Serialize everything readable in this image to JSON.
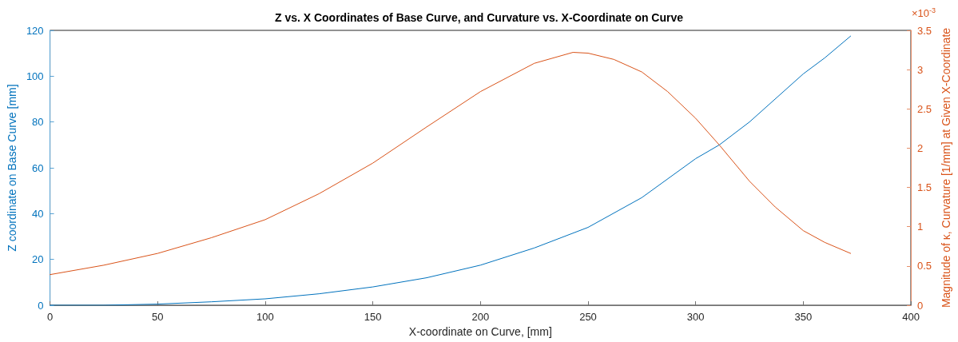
{
  "chart_data": {
    "type": "line",
    "title": "Z vs. X Coordinates of Base Curve, and Curvature vs. X-Coordinate on Curve",
    "xlabel": "X-coordinate on Curve, [mm]",
    "ylabel": "Z coordinate on Base Curve [mm]",
    "y2label": "Magnitude of κ, Curvature [1/mm] at Given X-Coordinate",
    "annotations": [
      "×10$^{-3}$"
    ],
    "series": [
      {
        "color": "#0072bd",
        "x": [
          0,
          25,
          50,
          75,
          100,
          125,
          150,
          175,
          200,
          225,
          250,
          275,
          300,
          311,
          325,
          350,
          360,
          372
        ],
        "values": [
          0,
          0,
          0.5,
          1.5,
          2.8,
          5,
          8,
          12,
          17.5,
          25,
          34,
          47,
          64,
          70,
          80,
          101,
          108,
          117.5
        ]
      },
      {
        "color": "#d95319",
        "axis": "y2",
        "x": [
          0,
          25,
          50,
          75,
          100,
          125,
          150,
          175,
          200,
          225,
          243,
          250,
          262,
          275,
          287,
          300,
          311,
          325,
          337,
          350,
          360,
          372
        ],
        "values": [
          0.39,
          0.51,
          0.66,
          0.86,
          1.09,
          1.42,
          1.81,
          2.27,
          2.72,
          3.08,
          3.22,
          3.21,
          3.13,
          2.97,
          2.72,
          2.38,
          2.04,
          1.58,
          1.25,
          0.95,
          0.8,
          0.66
        ]
      }
    ],
    "xlim": [
      0,
      400
    ],
    "xticks": [
      0,
      50,
      100,
      150,
      200,
      250,
      300,
      350,
      400
    ],
    "ylim": [
      0,
      120
    ],
    "yticks": [
      0,
      20,
      40,
      60,
      80,
      100,
      120
    ],
    "y2lim": [
      0,
      3.5
    ],
    "y2ticks": [
      0,
      0.5,
      1,
      1.5,
      2,
      2.5,
      3,
      3.5
    ],
    "grid": false,
    "marker": "none",
    "line_style": "solid"
  }
}
